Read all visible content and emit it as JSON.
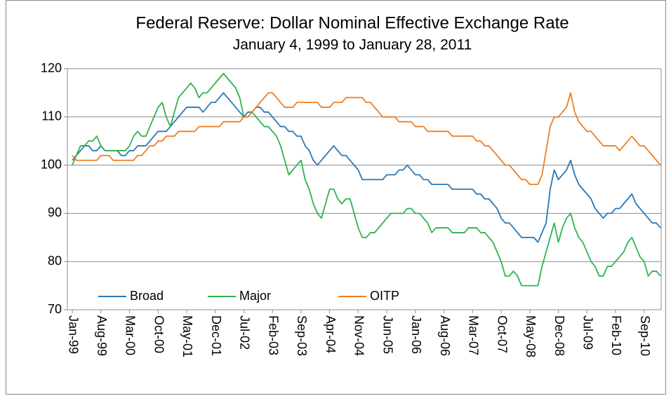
{
  "chart_data": {
    "type": "line",
    "title": "Federal Reserve: Dollar Nominal Effective Exchange Rate",
    "subtitle": "January 4, 1999 to January 28, 2011",
    "categories": [
      "Jan-99",
      null,
      null,
      null,
      null,
      null,
      null,
      "Aug-99",
      null,
      null,
      null,
      null,
      null,
      null,
      "Mar-00",
      null,
      null,
      null,
      null,
      null,
      null,
      "Oct-00",
      null,
      null,
      null,
      null,
      null,
      null,
      "May-01",
      null,
      null,
      null,
      null,
      null,
      null,
      "Dec-01",
      null,
      null,
      null,
      null,
      null,
      null,
      "Jul-02",
      null,
      null,
      null,
      null,
      null,
      null,
      "Feb-03",
      null,
      null,
      null,
      null,
      null,
      null,
      "Sep-03",
      null,
      null,
      null,
      null,
      null,
      null,
      "Apr-04",
      null,
      null,
      null,
      null,
      null,
      null,
      "Nov-04",
      null,
      null,
      null,
      null,
      null,
      null,
      "Jun-05",
      null,
      null,
      null,
      null,
      null,
      null,
      "Jan-06",
      null,
      null,
      null,
      null,
      null,
      null,
      "Aug-06",
      null,
      null,
      null,
      null,
      null,
      null,
      "Mar-07",
      null,
      null,
      null,
      null,
      null,
      null,
      "Oct-07",
      null,
      null,
      null,
      null,
      null,
      null,
      "May-08",
      null,
      null,
      null,
      null,
      null,
      null,
      "Dec-08",
      null,
      null,
      null,
      null,
      null,
      null,
      "Jul-09",
      null,
      null,
      null,
      null,
      null,
      null,
      "Feb-10",
      null,
      null,
      null,
      null,
      null,
      null,
      "Sep-10",
      null,
      null,
      null,
      null
    ],
    "series": [
      {
        "name": "Broad",
        "color": "#2878b8",
        "values": [
          101,
          102,
          103,
          104,
          104,
          103,
          103,
          104,
          103,
          103,
          103,
          103,
          102,
          102,
          103,
          103,
          104,
          104,
          104,
          105,
          106,
          107,
          107,
          107,
          108,
          109,
          110,
          111,
          112,
          112,
          112,
          112,
          111,
          112,
          113,
          113,
          114,
          115,
          114,
          113,
          112,
          111,
          110,
          111,
          111,
          112,
          112,
          111,
          111,
          110,
          109,
          108,
          108,
          107,
          107,
          106,
          106,
          104,
          103,
          101,
          100,
          101,
          102,
          103,
          104,
          103,
          102,
          102,
          101,
          100,
          99,
          97,
          97,
          97,
          97,
          97,
          97,
          98,
          98,
          98,
          99,
          99,
          100,
          99,
          98,
          98,
          97,
          97,
          96,
          96,
          96,
          96,
          96,
          95,
          95,
          95,
          95,
          95,
          95,
          94,
          94,
          93,
          93,
          92,
          91,
          89,
          88,
          88,
          87,
          86,
          85,
          85,
          85,
          85,
          84,
          86,
          88,
          95,
          99,
          97,
          98,
          99,
          101,
          98,
          96,
          95,
          94,
          93,
          91,
          90,
          89,
          90,
          90,
          91,
          91,
          92,
          93,
          94,
          92,
          91,
          90,
          89,
          88,
          88,
          87
        ]
      },
      {
        "name": "Major",
        "color": "#2fb34c",
        "values": [
          100,
          102,
          104,
          104,
          105,
          105,
          106,
          104,
          103,
          103,
          103,
          103,
          103,
          103,
          104,
          106,
          107,
          106,
          106,
          108,
          110,
          112,
          113,
          110,
          108,
          111,
          114,
          115,
          116,
          117,
          116,
          114,
          115,
          115,
          116,
          117,
          118,
          119,
          118,
          117,
          116,
          114,
          110,
          110,
          111,
          110,
          109,
          108,
          108,
          107,
          106,
          104,
          101,
          98,
          99,
          100,
          101,
          97,
          95,
          92,
          90,
          89,
          92,
          95,
          95,
          93,
          92,
          93,
          93,
          90,
          87,
          85,
          85,
          86,
          86,
          87,
          88,
          89,
          90,
          90,
          90,
          90,
          91,
          91,
          90,
          90,
          89,
          88,
          86,
          87,
          87,
          87,
          87,
          86,
          86,
          86,
          86,
          87,
          87,
          87,
          86,
          86,
          85,
          84,
          82,
          80,
          77,
          77,
          78,
          77,
          75,
          75,
          75,
          75,
          75,
          79,
          82,
          85,
          88,
          84,
          87,
          89,
          90,
          87,
          85,
          84,
          82,
          80,
          79,
          77,
          77,
          79,
          79,
          80,
          81,
          82,
          84,
          85,
          83,
          81,
          80,
          77,
          78,
          78,
          77
        ]
      },
      {
        "name": "OITP",
        "color": "#ee7d22",
        "values": [
          102,
          101,
          101,
          101,
          101,
          101,
          101,
          102,
          102,
          102,
          101,
          101,
          101,
          101,
          101,
          101,
          102,
          102,
          103,
          104,
          104,
          105,
          105,
          106,
          106,
          106,
          107,
          107,
          107,
          107,
          107,
          108,
          108,
          108,
          108,
          108,
          108,
          109,
          109,
          109,
          109,
          109,
          110,
          110,
          111,
          112,
          113,
          114,
          115,
          115,
          114,
          113,
          112,
          112,
          112,
          113,
          113,
          113,
          113,
          113,
          113,
          112,
          112,
          112,
          113,
          113,
          113,
          114,
          114,
          114,
          114,
          114,
          113,
          113,
          112,
          111,
          110,
          110,
          110,
          110,
          109,
          109,
          109,
          109,
          108,
          108,
          108,
          107,
          107,
          107,
          107,
          107,
          107,
          106,
          106,
          106,
          106,
          106,
          106,
          105,
          105,
          104,
          104,
          103,
          102,
          101,
          100,
          100,
          99,
          98,
          97,
          97,
          96,
          96,
          96,
          98,
          103,
          108,
          110,
          110,
          111,
          112,
          115,
          111,
          109,
          108,
          107,
          107,
          106,
          105,
          104,
          104,
          104,
          104,
          103,
          104,
          105,
          106,
          105,
          104,
          104,
          103,
          102,
          101,
          100
        ]
      }
    ],
    "ylim": [
      70,
      120
    ],
    "yticks": [
      70,
      80,
      90,
      100,
      110,
      120
    ],
    "grid": true,
    "legend": "lower left"
  }
}
